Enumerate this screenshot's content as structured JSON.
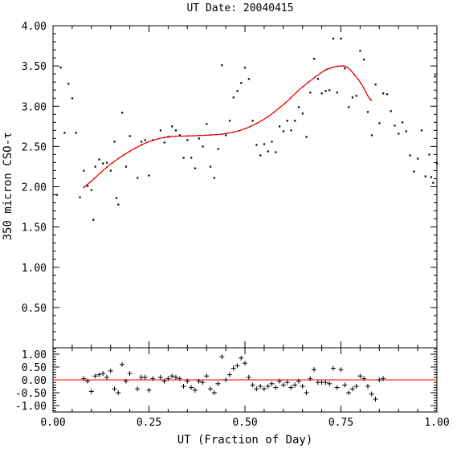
{
  "chart_data": {
    "type": "scatter",
    "title": "UT Date: 20040415",
    "xlabel": "UT (Fraction of Day)",
    "ylabel": "350 micron CSO-τ",
    "xlim": [
      0,
      1
    ],
    "xticks": [
      "0.00",
      "0.25",
      "0.50",
      "0.75",
      "1.00"
    ],
    "top_panel": {
      "ylim": [
        0,
        4
      ],
      "yticks": [
        "0.50",
        "1.00",
        "1.50",
        "2.00",
        "2.50",
        "3.00",
        "3.50",
        "4.00"
      ],
      "points": [
        [
          0.01,
          1.9
        ],
        [
          0.02,
          3.48
        ],
        [
          0.03,
          2.67
        ],
        [
          0.04,
          3.28
        ],
        [
          0.05,
          3.1
        ],
        [
          0.06,
          2.67
        ],
        [
          0.07,
          1.87
        ],
        [
          0.08,
          2.2
        ],
        [
          0.09,
          2.01
        ],
        [
          0.1,
          1.96
        ],
        [
          0.105,
          1.59
        ],
        [
          0.11,
          2.25
        ],
        [
          0.12,
          2.34
        ],
        [
          0.13,
          2.29
        ],
        [
          0.14,
          2.3
        ],
        [
          0.15,
          2.2
        ],
        [
          0.16,
          2.56
        ],
        [
          0.165,
          1.86
        ],
        [
          0.17,
          1.78
        ],
        [
          0.18,
          2.92
        ],
        [
          0.19,
          2.25
        ],
        [
          0.2,
          2.63
        ],
        [
          0.22,
          2.11
        ],
        [
          0.23,
          2.56
        ],
        [
          0.24,
          2.58
        ],
        [
          0.25,
          2.14
        ],
        [
          0.26,
          2.58
        ],
        [
          0.28,
          2.7
        ],
        [
          0.29,
          2.55
        ],
        [
          0.3,
          2.62
        ],
        [
          0.31,
          2.75
        ],
        [
          0.32,
          2.7
        ],
        [
          0.33,
          2.64
        ],
        [
          0.34,
          2.36
        ],
        [
          0.35,
          2.58
        ],
        [
          0.36,
          2.36
        ],
        [
          0.37,
          2.23
        ],
        [
          0.38,
          2.6
        ],
        [
          0.39,
          2.5
        ],
        [
          0.4,
          2.78
        ],
        [
          0.41,
          2.25
        ],
        [
          0.42,
          2.11
        ],
        [
          0.43,
          2.47
        ],
        [
          0.44,
          3.51
        ],
        [
          0.45,
          2.64
        ],
        [
          0.46,
          2.82
        ],
        [
          0.47,
          3.11
        ],
        [
          0.48,
          3.19
        ],
        [
          0.49,
          3.29
        ],
        [
          0.5,
          3.48
        ],
        [
          0.51,
          3.34
        ],
        [
          0.52,
          2.82
        ],
        [
          0.53,
          2.52
        ],
        [
          0.54,
          2.39
        ],
        [
          0.55,
          2.53
        ],
        [
          0.56,
          2.44
        ],
        [
          0.57,
          2.56
        ],
        [
          0.58,
          2.43
        ],
        [
          0.59,
          2.75
        ],
        [
          0.6,
          2.69
        ],
        [
          0.61,
          2.82
        ],
        [
          0.62,
          2.7
        ],
        [
          0.63,
          2.82
        ],
        [
          0.64,
          2.99
        ],
        [
          0.65,
          2.91
        ],
        [
          0.66,
          2.62
        ],
        [
          0.67,
          3.17
        ],
        [
          0.68,
          3.59
        ],
        [
          0.69,
          3.34
        ],
        [
          0.7,
          3.16
        ],
        [
          0.71,
          3.19
        ],
        [
          0.72,
          3.2
        ],
        [
          0.73,
          3.84
        ],
        [
          0.74,
          3.17
        ],
        [
          0.75,
          3.84
        ],
        [
          0.76,
          3.47
        ],
        [
          0.77,
          2.99
        ],
        [
          0.78,
          3.11
        ],
        [
          0.79,
          3.13
        ],
        [
          0.8,
          3.69
        ],
        [
          0.81,
          3.58
        ],
        [
          0.82,
          2.93
        ],
        [
          0.83,
          2.64
        ],
        [
          0.84,
          3.27
        ],
        [
          0.85,
          2.79
        ],
        [
          0.86,
          3.16
        ],
        [
          0.87,
          3.15
        ],
        [
          0.88,
          2.94
        ],
        [
          0.89,
          2.76
        ],
        [
          0.9,
          2.66
        ],
        [
          0.91,
          2.8
        ],
        [
          0.92,
          2.69
        ],
        [
          0.93,
          2.39
        ],
        [
          0.94,
          2.19
        ],
        [
          0.95,
          2.35
        ],
        [
          0.96,
          2.7
        ],
        [
          0.97,
          2.13
        ],
        [
          0.98,
          2.4
        ],
        [
          0.985,
          2.12
        ],
        [
          0.99,
          2.05
        ],
        [
          0.995,
          3.37
        ],
        [
          1.0,
          2.29
        ]
      ],
      "fit_x": [
        0.08,
        0.1,
        0.15,
        0.2,
        0.25,
        0.3,
        0.35,
        0.4,
        0.45,
        0.5,
        0.55,
        0.6,
        0.65,
        0.7,
        0.72,
        0.75,
        0.77,
        0.8,
        0.82,
        0.83
      ],
      "fit_y": [
        1.99,
        2.07,
        2.28,
        2.44,
        2.56,
        2.62,
        2.63,
        2.64,
        2.66,
        2.72,
        2.84,
        3.02,
        3.24,
        3.42,
        3.47,
        3.5,
        3.47,
        3.3,
        3.13,
        3.07
      ]
    },
    "bottom_panel": {
      "ylim": [
        -1.25,
        1.25
      ],
      "yticks": [
        "1.00",
        "0.50",
        "0.00",
        "-0.50",
        "-1.00"
      ],
      "zero_line": 0,
      "residuals": [
        [
          0.08,
          0.05
        ],
        [
          0.09,
          -0.05
        ],
        [
          0.1,
          -0.45
        ],
        [
          0.11,
          0.15
        ],
        [
          0.12,
          0.2
        ],
        [
          0.13,
          0.25
        ],
        [
          0.14,
          0.1
        ],
        [
          0.15,
          0.35
        ],
        [
          0.16,
          -0.35
        ],
        [
          0.17,
          -0.5
        ],
        [
          0.18,
          0.6
        ],
        [
          0.19,
          -0.05
        ],
        [
          0.2,
          0.25
        ],
        [
          0.22,
          -0.35
        ],
        [
          0.23,
          0.1
        ],
        [
          0.24,
          0.1
        ],
        [
          0.25,
          -0.4
        ],
        [
          0.26,
          0.05
        ],
        [
          0.28,
          0.1
        ],
        [
          0.29,
          -0.05
        ],
        [
          0.3,
          0.05
        ],
        [
          0.31,
          0.15
        ],
        [
          0.32,
          0.1
        ],
        [
          0.33,
          0.05
        ],
        [
          0.34,
          -0.25
        ],
        [
          0.35,
          -0.05
        ],
        [
          0.36,
          -0.3
        ],
        [
          0.37,
          -0.4
        ],
        [
          0.38,
          -0.05
        ],
        [
          0.39,
          -0.1
        ],
        [
          0.4,
          0.15
        ],
        [
          0.41,
          -0.35
        ],
        [
          0.42,
          -0.5
        ],
        [
          0.43,
          -0.15
        ],
        [
          0.44,
          0.9
        ],
        [
          0.45,
          0.0
        ],
        [
          0.46,
          0.2
        ],
        [
          0.47,
          0.45
        ],
        [
          0.48,
          0.55
        ],
        [
          0.49,
          0.85
        ],
        [
          0.5,
          0.65
        ],
        [
          0.51,
          0.1
        ],
        [
          0.52,
          -0.2
        ],
        [
          0.53,
          -0.35
        ],
        [
          0.54,
          -0.25
        ],
        [
          0.55,
          -0.35
        ],
        [
          0.56,
          -0.25
        ],
        [
          0.57,
          -0.15
        ],
        [
          0.58,
          -0.3
        ],
        [
          0.59,
          -0.05
        ],
        [
          0.6,
          -0.2
        ],
        [
          0.61,
          -0.1
        ],
        [
          0.62,
          -0.3
        ],
        [
          0.63,
          -0.2
        ],
        [
          0.64,
          -0.05
        ],
        [
          0.65,
          -0.25
        ],
        [
          0.66,
          -0.5
        ],
        [
          0.67,
          0.05
        ],
        [
          0.68,
          0.4
        ],
        [
          0.69,
          -0.1
        ],
        [
          0.7,
          -0.1
        ],
        [
          0.71,
          -0.1
        ],
        [
          0.72,
          -0.15
        ],
        [
          0.73,
          0.45
        ],
        [
          0.74,
          -0.3
        ],
        [
          0.75,
          0.4
        ],
        [
          0.76,
          -0.2
        ],
        [
          0.77,
          -0.5
        ],
        [
          0.78,
          -0.35
        ],
        [
          0.79,
          -0.25
        ],
        [
          0.8,
          0.15
        ],
        [
          0.81,
          0.05
        ],
        [
          0.82,
          -0.25
        ],
        [
          0.83,
          -0.55
        ],
        [
          0.84,
          -0.75
        ],
        [
          0.85,
          0.0
        ],
        [
          0.86,
          0.05
        ]
      ]
    }
  }
}
